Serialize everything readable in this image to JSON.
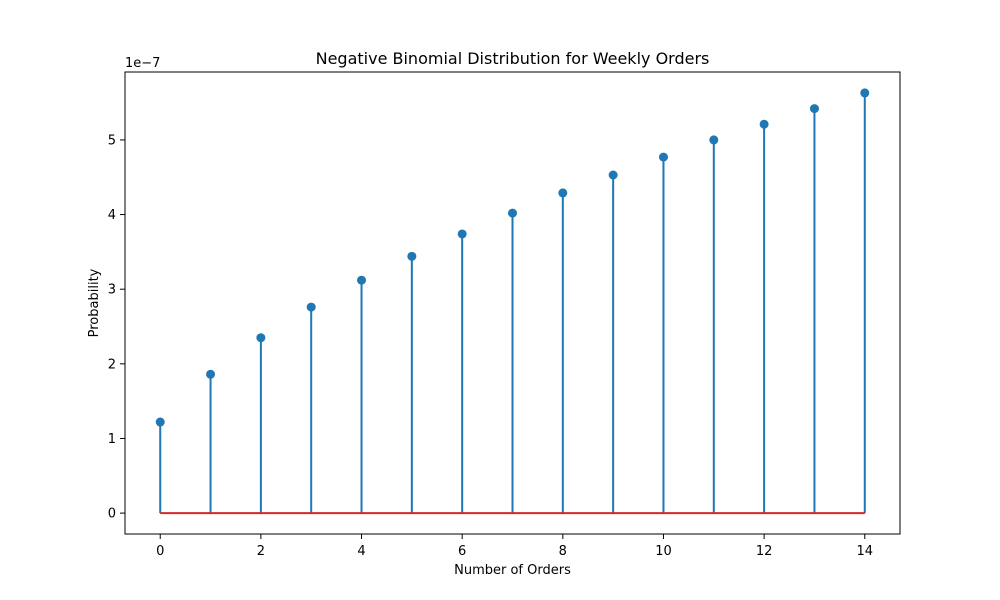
{
  "chart_data": {
    "type": "stem",
    "title": "Negative Binomial Distribution for Weekly Orders",
    "xlabel": "Number of Orders",
    "ylabel": "Probability",
    "y_offset_label": "1e−7",
    "x": [
      0,
      1,
      2,
      3,
      4,
      5,
      6,
      7,
      8,
      9,
      10,
      11,
      12,
      13,
      14
    ],
    "values": [
      1.22e-07,
      1.86e-07,
      2.35e-07,
      2.76e-07,
      3.12e-07,
      3.44e-07,
      3.74e-07,
      4.02e-07,
      4.29e-07,
      4.53e-07,
      4.77e-07,
      5e-07,
      5.21e-07,
      5.42e-07,
      5.63e-07
    ],
    "xlim": [
      -0.7,
      14.7
    ],
    "ylim": [
      -2.8e-08,
      5.91e-07
    ],
    "xticks": [
      0,
      2,
      4,
      6,
      8,
      10,
      12,
      14
    ],
    "yticks": [
      0,
      1,
      2,
      3,
      4,
      5
    ],
    "colors": {
      "stem": "#1f77b4",
      "baseline": "#d62728"
    },
    "grid": false
  }
}
